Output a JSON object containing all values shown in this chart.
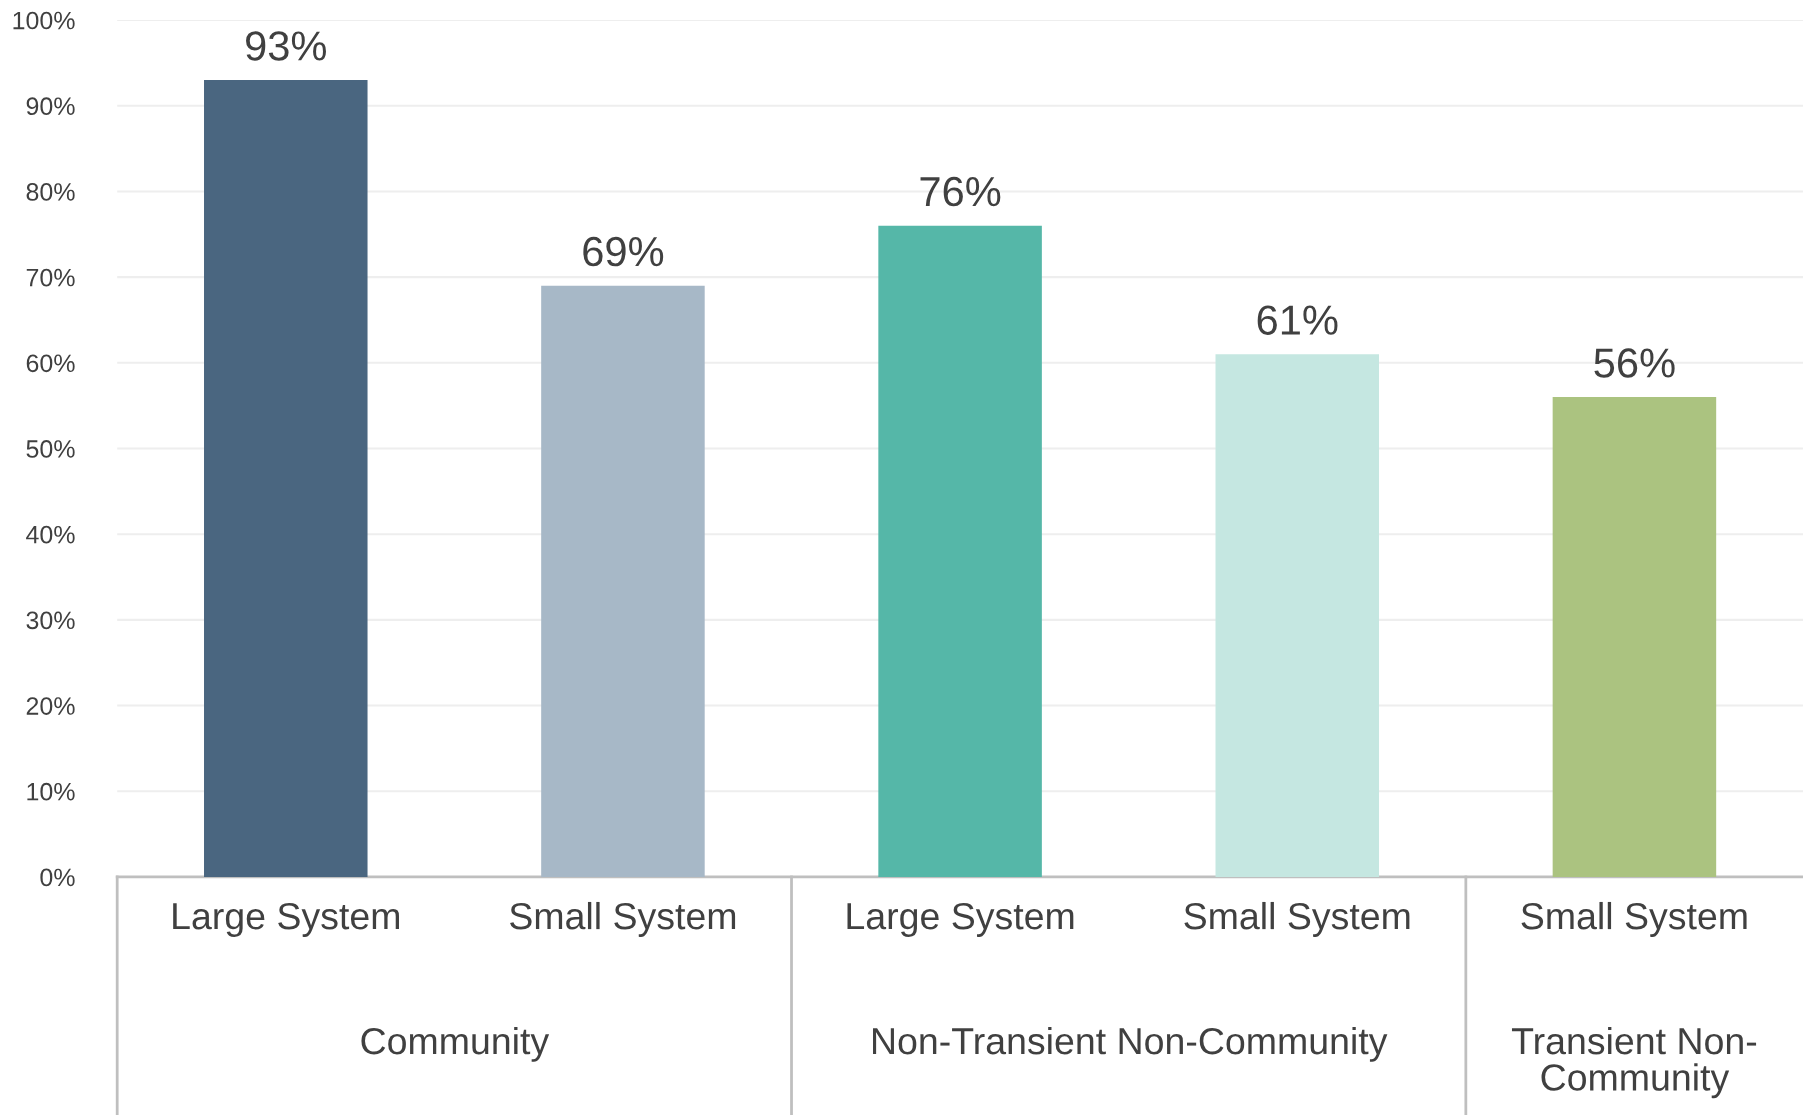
{
  "chart_data": {
    "type": "bar",
    "categories": [
      "Large System",
      "Small System",
      "Large System",
      "Small System",
      "Small System"
    ],
    "values": [
      93,
      69,
      76,
      61,
      56
    ],
    "colors": [
      "#4a6680",
      "#a7b8c7",
      "#55b7a8",
      "#c5e7e1",
      "#abc380"
    ],
    "ylim": [
      0,
      100
    ],
    "yticks": [
      {
        "value": 0,
        "label": "0%"
      },
      {
        "value": 10,
        "label": "10%"
      },
      {
        "value": 20,
        "label": "20%"
      },
      {
        "value": 30,
        "label": "30%"
      },
      {
        "value": 40,
        "label": "40%"
      },
      {
        "value": 50,
        "label": "50%"
      },
      {
        "value": 60,
        "label": "60%"
      },
      {
        "value": 70,
        "label": "70%"
      },
      {
        "value": 80,
        "label": "80%"
      },
      {
        "value": 90,
        "label": "90%"
      },
      {
        "value": 100,
        "label": "100%"
      }
    ],
    "value_labels": [
      "93%",
      "69%",
      "76%",
      "61%",
      "56%"
    ],
    "annotations": [
      "Community",
      "Non-Transient Non-Community",
      "Transient Non-\nCommunity"
    ],
    "grid": "y"
  }
}
